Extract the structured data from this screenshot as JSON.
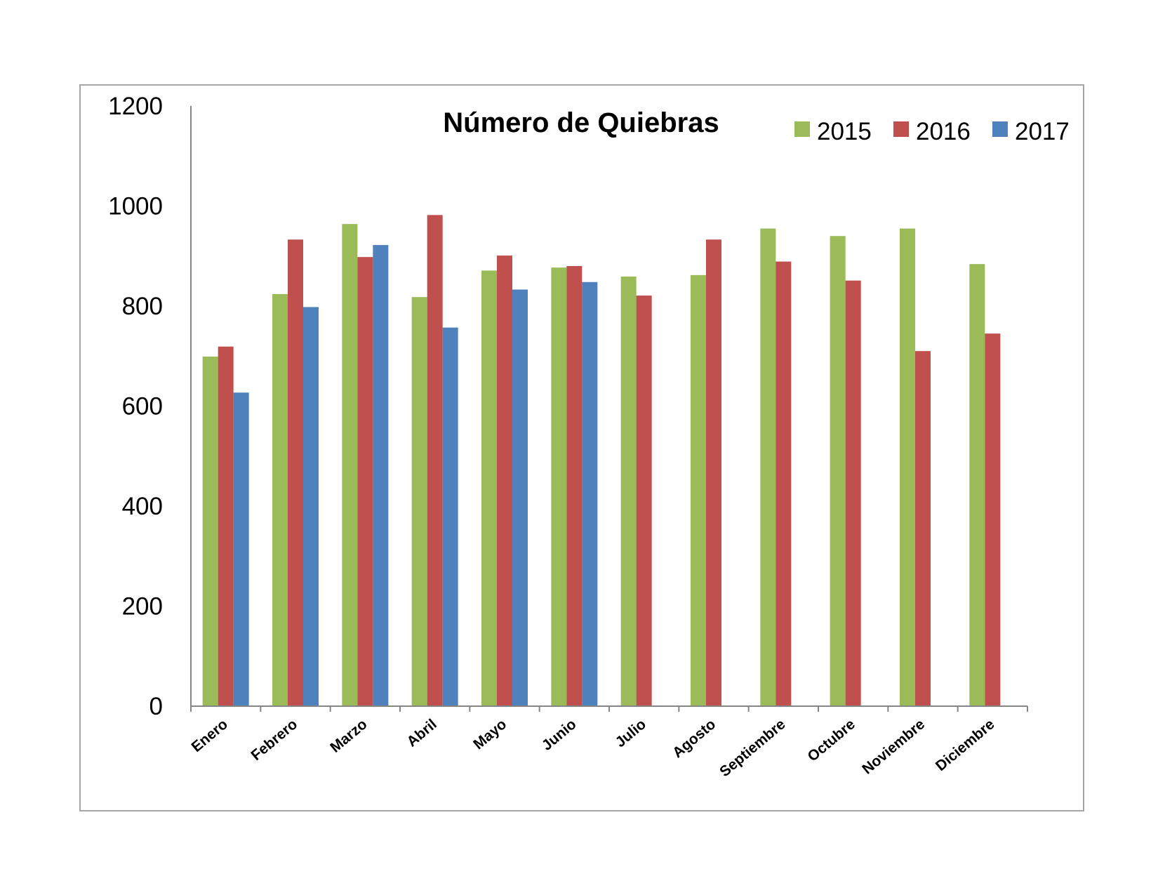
{
  "chart_data": {
    "type": "bar",
    "title": "Número de Quiebras",
    "xlabel": "",
    "ylabel": "",
    "ylim": [
      0,
      1200
    ],
    "yticks": [
      0,
      200,
      400,
      600,
      800,
      1000,
      1200
    ],
    "grid": false,
    "legend_position": "top-right",
    "categories": [
      "Enero",
      "Febrero",
      "Marzo",
      "Abril",
      "Mayo",
      "Junio",
      "Julio",
      "Agosto",
      "Septiembre",
      "Octubre",
      "Noviembre",
      "Diciembre"
    ],
    "series": [
      {
        "name": "2015",
        "color": "#9bbb59",
        "values": [
          699,
          824,
          964,
          818,
          871,
          877,
          859,
          862,
          955,
          940,
          955,
          884
        ]
      },
      {
        "name": "2016",
        "color": "#c0504d",
        "values": [
          719,
          933,
          898,
          982,
          901,
          880,
          821,
          933,
          889,
          851,
          710,
          745
        ]
      },
      {
        "name": "2017",
        "color": "#4f81bd",
        "values": [
          627,
          798,
          922,
          757,
          833,
          848,
          null,
          null,
          null,
          null,
          null,
          null
        ]
      }
    ]
  }
}
